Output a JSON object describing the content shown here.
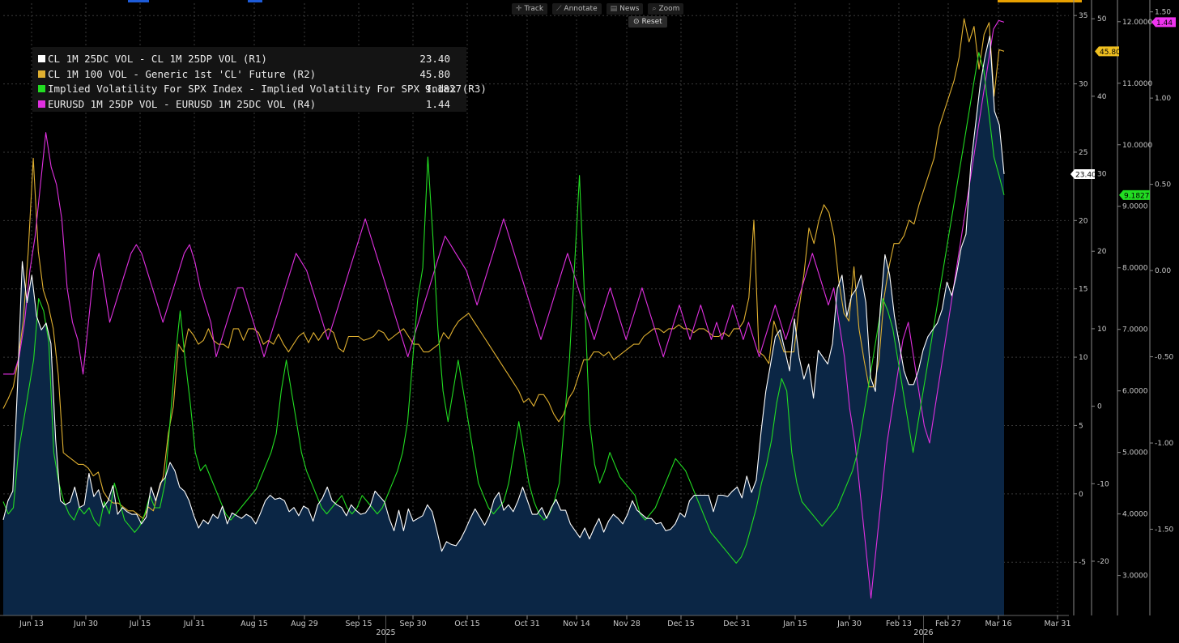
{
  "toolbar": {
    "track_label": "Track",
    "annotate_label": "Annotate",
    "news_label": "News",
    "zoom_label": "Zoom",
    "reset_label": "Reset"
  },
  "chart_data": {
    "type": "line",
    "title": "",
    "x_axis": {
      "ticks": [
        "Jun 13",
        "Jun 30",
        "Jul 15",
        "Jul 31",
        "Aug 15",
        "Aug 29",
        "Sep 15",
        "Sep 30",
        "Oct 15",
        "Oct 31",
        "Nov 14",
        "Nov 28",
        "Dec 15",
        "Dec 31",
        "Jan 15",
        "Jan 30",
        "Feb 13",
        "Feb 27",
        "Mar 16",
        "Mar 31"
      ],
      "years": [
        {
          "label": "2025",
          "after_tick": "Sep 15"
        },
        {
          "label": "2026",
          "after_tick": "Feb 13"
        }
      ]
    },
    "axes": {
      "R1": {
        "ticks": [
          -5,
          0,
          5,
          10,
          15,
          20,
          25,
          30,
          35
        ],
        "range": [
          -8.9,
          35.9
        ]
      },
      "R2": {
        "ticks": [
          -20,
          -10,
          0,
          10,
          20,
          30,
          40,
          50
        ],
        "range": [
          -27,
          52
        ]
      },
      "R3": {
        "ticks": [
          "3.0000",
          "4.0000",
          "5.0000",
          "6.0000",
          "7.0000",
          "8.0000",
          "9.0000",
          "10.0000",
          "11.0000",
          "12.0000"
        ],
        "range": [
          2.35,
          12.3
        ]
      },
      "R4": {
        "ticks": [
          "-1.50",
          "-1.00",
          "-0.50",
          "0.00",
          "0.50",
          "1.00",
          "1.50"
        ],
        "range": [
          -2.0,
          1.55
        ]
      }
    },
    "grid": true,
    "legend_position": "top-left",
    "series": [
      {
        "name": "CL 1M 25DC VOL - CL 1M 25DP VOL (R1)",
        "last_value": "23.40",
        "axis": "R1",
        "color": "#ffffff",
        "fill": "#0b2645",
        "values": [
          -1.9,
          -0.5,
          0.2,
          8,
          17,
          14,
          16,
          13,
          12,
          12.5,
          11,
          4,
          -0.5,
          -0.8,
          -0.6,
          0.5,
          -1,
          -0.8,
          1.5,
          -0.2,
          0.3,
          -1.0,
          -0.5,
          0.6,
          -1.5,
          -1.0,
          -1.3,
          -1.5,
          -1.5,
          -2.2,
          -1.7,
          0.5,
          -0.5,
          0.8,
          1.2,
          2.3,
          1.7,
          0.5,
          0.2,
          -0.5,
          -1.6,
          -2.5,
          -1.9,
          -2.2,
          -1.5,
          -1.8,
          -0.9,
          -2.2,
          -1.4,
          -1.6,
          -1.8,
          -1.5,
          -1.7,
          -2.2,
          -1.4,
          -0.5,
          -0.1,
          -0.4,
          -0.3,
          -0.5,
          -1.3,
          -1.0,
          -1.6,
          -0.9,
          -1.1,
          -2.0,
          -0.8,
          -0.3,
          0.5,
          -0.5,
          -0.8,
          -1.0,
          -1.6,
          -0.8,
          -1.2,
          -1.5,
          -1.4,
          -0.9,
          0.2,
          -0.2,
          -0.6,
          -1.8,
          -2.7,
          -1.2,
          -2.7,
          -1.1,
          -2.0,
          -1.8,
          -1.6,
          -0.8,
          -1.3,
          -2.7,
          -4.2,
          -3.5,
          -3.7,
          -3.8,
          -3.3,
          -2.6,
          -1.8,
          -1.1,
          -1.7,
          -2.3,
          -1.6,
          -0.4,
          0.1,
          -1.2,
          -0.8,
          -1.3,
          -0.5,
          0.5,
          -0.5,
          -1.5,
          -1.5,
          -1.0,
          -1.8,
          -1.0,
          -0.4,
          -1.2,
          -1.2,
          -2.2,
          -2.7,
          -3.2,
          -2.5,
          -3.3,
          -2.5,
          -1.8,
          -2.8,
          -2.0,
          -1.5,
          -1.8,
          -2.2,
          -1.5,
          -0.5,
          -1.2,
          -1.5,
          -1.8,
          -1.8,
          -2.2,
          -2.1,
          -2.7,
          -2.6,
          -2.2,
          -1.4,
          -1.7,
          -0.5,
          -0.1,
          -0.1,
          -0.1,
          -0.1,
          -1.3,
          -0.1,
          -0.1,
          -0.2,
          0.2,
          0.5,
          -0.3,
          1.3,
          0.1,
          1.0,
          4.5,
          7.5,
          9.5,
          11.5,
          12.0,
          10.5,
          9.0,
          12.8,
          10.0,
          8.4,
          9.5,
          7.0,
          10.5,
          10.0,
          9.5,
          11.0,
          15.0,
          16.0,
          13.0,
          14.5,
          15.0,
          16.0,
          14.0,
          8.5,
          7.5,
          13.5,
          17.5,
          16.0,
          13.0,
          11.0,
          9.0,
          8.0,
          8.0,
          9.0,
          10.5,
          11.5,
          12.0,
          12.5,
          13.5,
          15.5,
          14.5,
          16.0,
          18.0,
          19.0,
          24.0,
          27.0,
          30.0,
          32.0,
          33.5,
          28.0,
          27.0,
          23.4
        ]
      },
      {
        "name": "CL 1M 100 VOL - Generic 1st 'CL' Future (R2)",
        "last_value": "45.80",
        "axis": "R2",
        "color": "#e0b030",
        "values": [
          -0.3,
          1,
          2.5,
          6,
          11,
          20,
          32,
          20,
          15,
          13,
          10,
          4,
          -6,
          -6.5,
          -7,
          -7.5,
          -7.5,
          -8,
          -9,
          -8.5,
          -11,
          -12,
          -12.5,
          -12.5,
          -13,
          -13.5,
          -13.5,
          -14,
          -14.5,
          -13,
          -13.5,
          -11,
          -9,
          -3.5,
          0,
          8,
          7,
          10,
          9.2,
          8,
          8.5,
          10,
          8.5,
          8,
          8,
          7.5,
          10,
          10,
          8.5,
          10,
          10,
          9.5,
          8,
          8.5,
          8,
          9.3,
          8,
          7,
          8,
          9,
          9.5,
          8.2,
          9.5,
          8.5,
          9.5,
          10,
          9.5,
          7.5,
          7,
          9,
          9,
          9,
          8.5,
          8.7,
          9,
          9.8,
          9.5,
          8.5,
          9,
          9.5,
          10,
          9,
          8,
          8,
          7,
          7,
          7.5,
          8,
          9.5,
          8.7,
          10,
          11,
          11.5,
          12,
          11,
          10,
          9,
          8,
          7,
          6,
          5,
          4,
          3,
          2,
          0.5,
          1,
          0,
          1.5,
          1.5,
          0.5,
          -1,
          -2,
          -1,
          1,
          2,
          4,
          6,
          6,
          7,
          7,
          6.5,
          7,
          6,
          6.5,
          7,
          7.5,
          8,
          8,
          9,
          9.5,
          10,
          10,
          9.5,
          10,
          10,
          10.5,
          10,
          10,
          9.5,
          10,
          10,
          9.5,
          9,
          9,
          9.5,
          9,
          10,
          10,
          11,
          14,
          24,
          7,
          6.5,
          5.5,
          11,
          9,
          7,
          7,
          7,
          12.5,
          17,
          23,
          21,
          24,
          26,
          25,
          22,
          16,
          12,
          11,
          18,
          10,
          6,
          2.5,
          2.5,
          6,
          14,
          18,
          21,
          21,
          22,
          24,
          23.5,
          26,
          28,
          30,
          32,
          36,
          38,
          40,
          42,
          45,
          50,
          47,
          49,
          43.5,
          48,
          49.5,
          40,
          46,
          45.8
        ]
      },
      {
        "name": "Implied Volatility For SPX Index - Implied Volatility For SPX Index (R3)",
        "last_value": "9.1827",
        "axis": "R3",
        "color": "#22dd22",
        "values": [
          4.2,
          4.0,
          4.1,
          5.0,
          5.5,
          6.0,
          6.5,
          7.5,
          7.3,
          6.8,
          5.0,
          4.5,
          4.2,
          4.0,
          3.9,
          4.1,
          4.0,
          4.1,
          3.9,
          3.8,
          4.2,
          4.0,
          4.5,
          4.2,
          3.9,
          3.8,
          3.7,
          3.8,
          4.0,
          4.3,
          4.1,
          4.1,
          4.5,
          5.5,
          6.5,
          7.3,
          6.5,
          5.8,
          5.0,
          4.7,
          4.8,
          4.6,
          4.4,
          4.2,
          4.0,
          3.9,
          4.0,
          4.1,
          4.2,
          4.3,
          4.4,
          4.6,
          4.8,
          5.0,
          5.3,
          6.0,
          6.5,
          6.0,
          5.5,
          5.0,
          4.7,
          4.5,
          4.3,
          4.1,
          4.0,
          4.1,
          4.2,
          4.3,
          4.1,
          4.0,
          4.1,
          4.3,
          4.2,
          4.1,
          4.0,
          4.1,
          4.3,
          4.5,
          4.7,
          5.0,
          5.5,
          6.5,
          7.5,
          8.0,
          9.8,
          8.5,
          7.0,
          6.0,
          5.5,
          6.0,
          6.5,
          6.0,
          5.5,
          5.0,
          4.5,
          4.3,
          4.1,
          4.0,
          4.1,
          4.2,
          4.5,
          5.0,
          5.5,
          5.0,
          4.5,
          4.2,
          4.0,
          3.9,
          4.0,
          4.2,
          4.5,
          5.5,
          6.5,
          8.0,
          9.5,
          7.5,
          5.5,
          4.8,
          4.5,
          4.7,
          5.0,
          4.8,
          4.6,
          4.5,
          4.4,
          4.3,
          4.0,
          3.9,
          4.0,
          4.1,
          4.3,
          4.5,
          4.7,
          4.9,
          4.8,
          4.7,
          4.5,
          4.3,
          4.1,
          3.9,
          3.7,
          3.6,
          3.5,
          3.4,
          3.3,
          3.2,
          3.3,
          3.5,
          3.8,
          4.1,
          4.5,
          4.8,
          5.2,
          5.8,
          6.2,
          6.0,
          5.0,
          4.5,
          4.2,
          4.1,
          4.0,
          3.9,
          3.8,
          3.9,
          4.0,
          4.1,
          4.3,
          4.5,
          4.7,
          5.0,
          5.5,
          6.0,
          6.5,
          7.0,
          7.5,
          7.3,
          7.0,
          6.5,
          6.0,
          5.5,
          5.0,
          5.5,
          6.0,
          6.5,
          7.0,
          7.5,
          8.0,
          8.5,
          9.0,
          9.5,
          10.0,
          10.5,
          11.0,
          11.5,
          11.2,
          10.5,
          9.8,
          9.5,
          9.1827
        ]
      },
      {
        "name": "EURUSD 1M 25DP VOL - EURUSD 1M 25DC VOL (R4)",
        "last_value": "1.44",
        "axis": "R4",
        "color": "#e030e0",
        "values": [
          -0.6,
          -0.6,
          -0.6,
          -0.5,
          -0.3,
          0,
          0.2,
          0.5,
          0.8,
          0.6,
          0.5,
          0.3,
          -0.1,
          -0.3,
          -0.4,
          -0.6,
          -0.3,
          0,
          0.1,
          -0.1,
          -0.3,
          -0.2,
          -0.1,
          0,
          0.1,
          0.15,
          0.1,
          0,
          -0.1,
          -0.2,
          -0.3,
          -0.2,
          -0.1,
          0,
          0.1,
          0.15,
          0.05,
          -0.1,
          -0.2,
          -0.3,
          -0.5,
          -0.4,
          -0.3,
          -0.2,
          -0.1,
          -0.1,
          -0.2,
          -0.3,
          -0.4,
          -0.5,
          -0.4,
          -0.3,
          -0.2,
          -0.1,
          0,
          0.1,
          0.05,
          0,
          -0.1,
          -0.2,
          -0.3,
          -0.4,
          -0.3,
          -0.2,
          -0.1,
          0,
          0.1,
          0.2,
          0.3,
          0.2,
          0.1,
          0,
          -0.1,
          -0.2,
          -0.3,
          -0.4,
          -0.5,
          -0.4,
          -0.3,
          -0.2,
          -0.1,
          0,
          0.1,
          0.2,
          0.15,
          0.1,
          0.05,
          0,
          -0.1,
          -0.2,
          -0.1,
          0,
          0.1,
          0.2,
          0.3,
          0.2,
          0.1,
          0,
          -0.1,
          -0.2,
          -0.3,
          -0.4,
          -0.3,
          -0.2,
          -0.1,
          0,
          0.1,
          0,
          -0.1,
          -0.2,
          -0.3,
          -0.4,
          -0.3,
          -0.2,
          -0.1,
          -0.2,
          -0.3,
          -0.4,
          -0.3,
          -0.2,
          -0.1,
          -0.2,
          -0.3,
          -0.4,
          -0.5,
          -0.4,
          -0.3,
          -0.2,
          -0.3,
          -0.4,
          -0.3,
          -0.2,
          -0.3,
          -0.4,
          -0.3,
          -0.4,
          -0.3,
          -0.2,
          -0.3,
          -0.4,
          -0.3,
          -0.4,
          -0.5,
          -0.4,
          -0.3,
          -0.2,
          -0.3,
          -0.4,
          -0.3,
          -0.2,
          -0.1,
          0,
          0.1,
          0.0,
          -0.1,
          -0.2,
          -0.1,
          -0.3,
          -0.5,
          -0.8,
          -1.0,
          -1.3,
          -1.6,
          -1.9,
          -1.6,
          -1.3,
          -1.0,
          -0.8,
          -0.6,
          -0.4,
          -0.3,
          -0.5,
          -0.7,
          -0.9,
          -1.0,
          -0.8,
          -0.6,
          -0.4,
          -0.2,
          0,
          0.2,
          0.4,
          0.6,
          0.8,
          1.0,
          1.2,
          1.4,
          1.45,
          1.44
        ]
      }
    ]
  }
}
